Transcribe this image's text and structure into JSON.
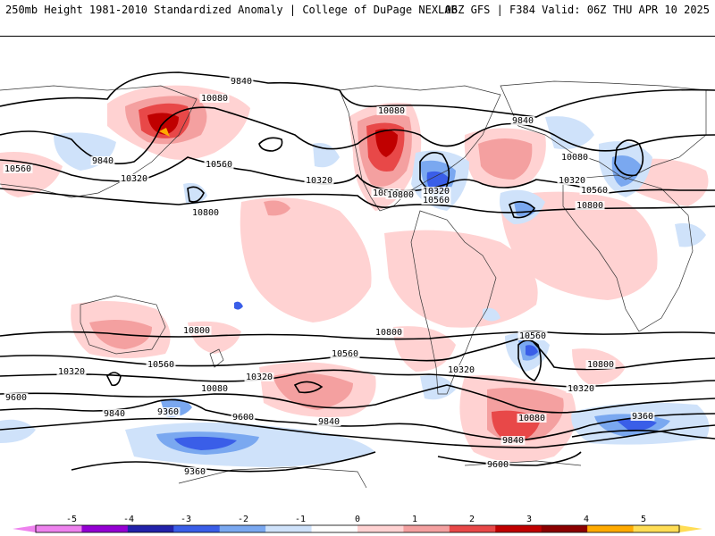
{
  "header": {
    "left": "250mb Height 1981-2010 Standardized Anomaly | College of DuPage NEXLAB",
    "right": "06Z GFS | F384 Valid: 06Z THU APR 10 2025"
  },
  "colorbar": {
    "ticks": [
      "-5",
      "-4",
      "-3",
      "-2",
      "-1",
      "0",
      "1",
      "2",
      "3",
      "4",
      "5"
    ],
    "colors": [
      "#ee82ee",
      "#9400d3",
      "#2222aa",
      "#3a5ee8",
      "#7aa8f0",
      "#cfe2fa",
      "#ffffff",
      "#ffd2d2",
      "#f4a0a0",
      "#e84848",
      "#c00000",
      "#8b0000",
      "#ffaa00",
      "#ffdd55"
    ]
  },
  "contour_labels": [
    {
      "id": "c01",
      "text": "9840"
    },
    {
      "id": "c02",
      "text": "10080"
    },
    {
      "id": "c03",
      "text": "10560"
    },
    {
      "id": "c04",
      "text": "9840"
    },
    {
      "id": "c05",
      "text": "10320"
    },
    {
      "id": "c06",
      "text": "10560"
    },
    {
      "id": "c07",
      "text": "10800"
    },
    {
      "id": "c08",
      "text": "10320"
    },
    {
      "id": "c09",
      "text": "10080"
    },
    {
      "id": "c10",
      "text": "10800"
    },
    {
      "id": "c11",
      "text": "10320"
    },
    {
      "id": "c12",
      "text": "10560"
    },
    {
      "id": "c13",
      "text": "9840"
    },
    {
      "id": "c14",
      "text": "10080"
    },
    {
      "id": "c15",
      "text": "10320"
    },
    {
      "id": "c16",
      "text": "10560"
    },
    {
      "id": "c17",
      "text": "10800"
    },
    {
      "id": "c18",
      "text": "10800"
    },
    {
      "id": "c19",
      "text": "10560"
    },
    {
      "id": "c20",
      "text": "10320"
    },
    {
      "id": "c21",
      "text": "10080"
    },
    {
      "id": "c22",
      "text": "9600"
    },
    {
      "id": "c23",
      "text": "9840"
    },
    {
      "id": "c24",
      "text": "9360"
    },
    {
      "id": "c25",
      "text": "9600"
    },
    {
      "id": "c26",
      "text": "9840"
    },
    {
      "id": "c27",
      "text": "9360"
    },
    {
      "id": "c28",
      "text": "10800"
    },
    {
      "id": "c29",
      "text": "10560"
    },
    {
      "id": "c30",
      "text": "10320"
    },
    {
      "id": "c31",
      "text": "10800"
    },
    {
      "id": "c32",
      "text": "10560"
    },
    {
      "id": "c33",
      "text": "10320"
    },
    {
      "id": "c34",
      "text": "10080"
    },
    {
      "id": "c35",
      "text": "9840"
    },
    {
      "id": "c36",
      "text": "9600"
    },
    {
      "id": "c37",
      "text": "9360"
    },
    {
      "id": "c38",
      "text": "10800"
    },
    {
      "id": "c39",
      "text": "10320"
    }
  ]
}
